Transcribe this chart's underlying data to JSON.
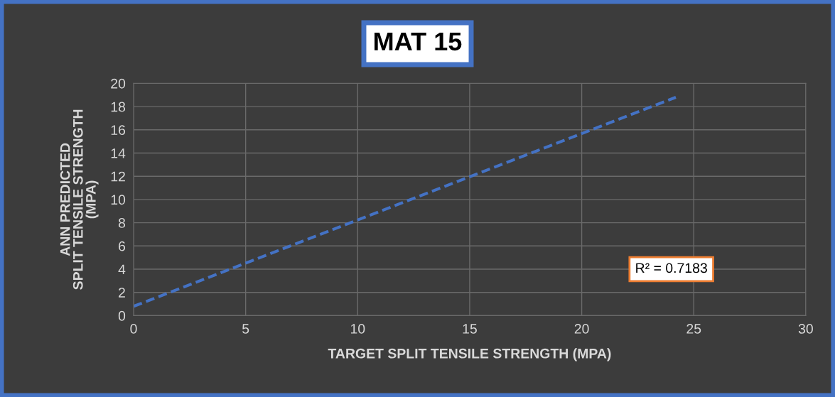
{
  "chart_data": {
    "type": "line",
    "title": "MAT 15",
    "xlabel": "TARGET SPLIT TENSILE STRENGTH (MPA)",
    "ylabel": "ANN PREDICTED\nSPLIT TENSILE STRENGTH\n(MPA)",
    "series": [
      {
        "color": "#4472c4",
        "x": [
          0,
          24.2
        ],
        "values": [
          0.8,
          18.8
        ],
        "line_style": "dashed"
      }
    ],
    "annotations": [
      "R² = 0.7183"
    ],
    "xlim": [
      0,
      30
    ],
    "xticks": [
      0,
      5,
      10,
      15,
      20,
      25,
      30
    ],
    "ylim": [
      0,
      20
    ],
    "yticks": [
      0,
      2,
      4,
      6,
      8,
      10,
      12,
      14,
      16,
      18,
      20
    ],
    "grid": true,
    "marker": "none"
  }
}
